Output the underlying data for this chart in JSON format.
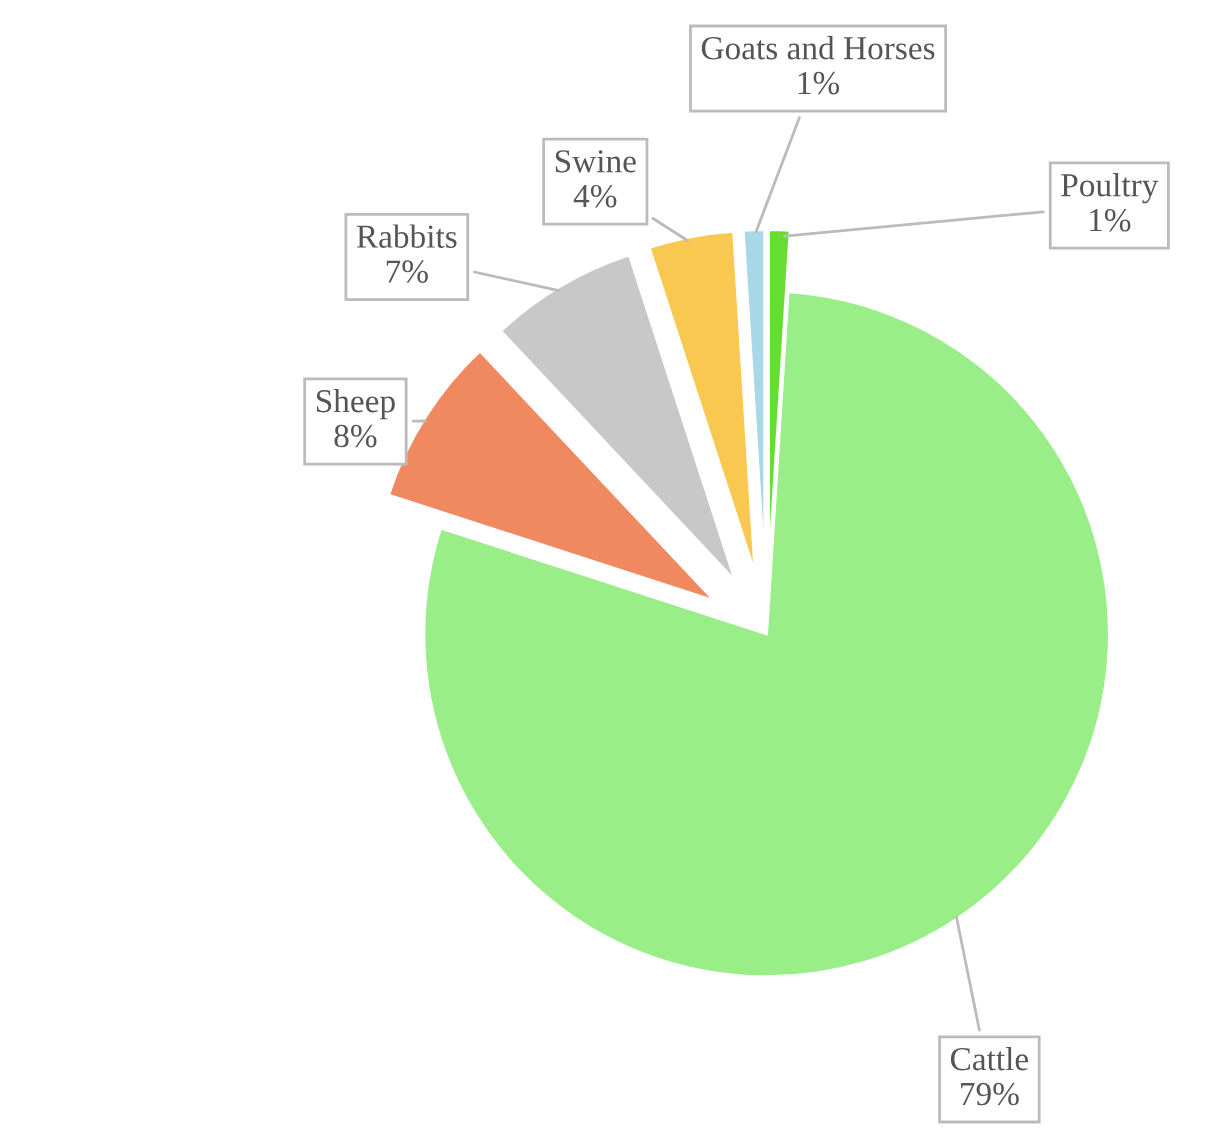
{
  "chart_data": {
    "type": "pie",
    "categories": [
      "Poultry",
      "Cattle",
      "Sheep",
      "Rabbits",
      "Swine",
      "Goats and Horses"
    ],
    "values": [
      1,
      79,
      8,
      7,
      4,
      1
    ],
    "colors": [
      "#66dd33",
      "#99ee88",
      "#f08860",
      "#c8c8c8",
      "#f8c850",
      "#a8d8e8"
    ],
    "value_labels": [
      "1%",
      "79%",
      "8%",
      "7%",
      "4%",
      "1%"
    ],
    "legend": false
  }
}
